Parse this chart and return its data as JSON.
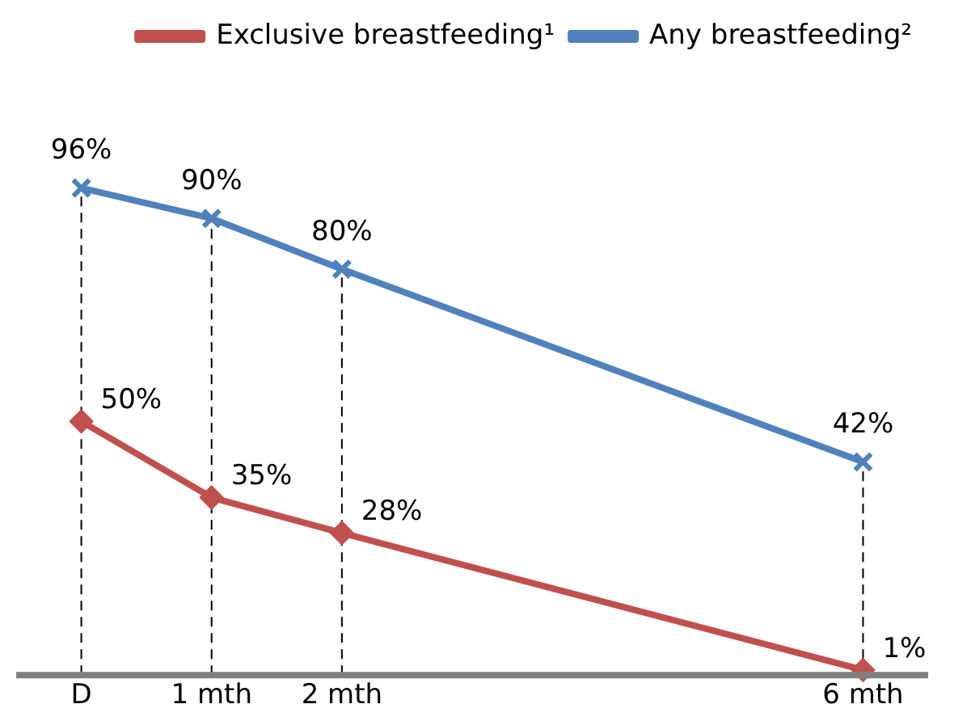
{
  "chart_data": {
    "type": "line",
    "x": [
      0,
      1,
      2,
      6
    ],
    "xlim": [
      -0.5,
      6.5
    ],
    "xticks": [
      {
        "value": 0,
        "label": "D"
      },
      {
        "value": 1,
        "label": "1 mth"
      },
      {
        "value": 2,
        "label": "2 mth"
      },
      {
        "value": 6,
        "label": "6 mth"
      }
    ],
    "tick_labels": "x",
    "grid": false,
    "legend": "top right",
    "line_style": "solid",
    "series": [
      {
        "name": "Exclusive breastfeeding¹",
        "color": "#c0504d",
        "values": [
          50,
          35,
          28,
          1
        ],
        "value_labels": [
          "50%",
          "35%",
          "28%",
          "1%"
        ],
        "marker": "diamond"
      },
      {
        "name": "Any breastfeeding²",
        "color": "#4f81bd",
        "values": [
          96,
          90,
          80,
          42
        ],
        "value_labels": [
          "96%",
          "90%",
          "80%",
          "42%"
        ],
        "marker": "cross"
      }
    ],
    "ref_lines": [
      {
        "axis": "x",
        "value": 0,
        "line_style": "dashed",
        "color": "#000000"
      },
      {
        "axis": "x",
        "value": 1,
        "line_style": "dashed",
        "color": "#000000"
      },
      {
        "axis": "x",
        "value": 2,
        "line_style": "dashed",
        "color": "#000000"
      },
      {
        "axis": "x",
        "value": 6,
        "line_style": "dashed",
        "color": "#000000"
      }
    ]
  }
}
